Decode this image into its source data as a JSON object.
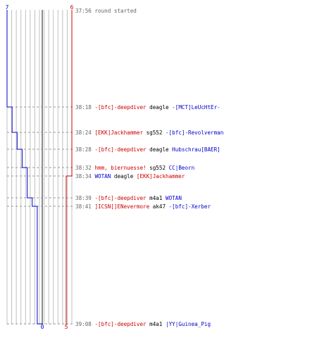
{
  "chart_data": {
    "type": "line",
    "description_free": true,
    "teams": {
      "blue": {
        "color": "#0000cc",
        "start": 7,
        "end": 0
      },
      "red": {
        "color": "#cc0000",
        "start": 6,
        "end": 5
      }
    },
    "start_labels": {
      "blue": "7",
      "red": "6"
    },
    "end_labels": {
      "blue": "0",
      "red": "5"
    },
    "x_range": [
      0,
      7
    ],
    "events": [
      {
        "time": "37:56",
        "parts": [
          {
            "text": "round started",
            "color": "#666666"
          }
        ],
        "blue": 7,
        "red": 6
      },
      {
        "time": "38:18",
        "parts": [
          {
            "text": "-[bfc]-deepdiver",
            "color": "#cc0000"
          },
          {
            "text": " deagle ",
            "color": "#000000"
          },
          {
            "text": "-[MCT]LeUcHtEr-",
            "color": "#0000cc"
          }
        ],
        "blue": 6,
        "red": 6
      },
      {
        "time": "38:24",
        "parts": [
          {
            "text": "[EKK]Jackhammer",
            "color": "#cc0000"
          },
          {
            "text": " sg552 ",
            "color": "#000000"
          },
          {
            "text": "-[bfc]-Revolverman",
            "color": "#0000cc"
          }
        ],
        "blue": 5,
        "red": 6
      },
      {
        "time": "38:28",
        "parts": [
          {
            "text": "-[bfc]-deepdiver",
            "color": "#cc0000"
          },
          {
            "text": " deagle ",
            "color": "#000000"
          },
          {
            "text": "Hubschrau[BAER]",
            "color": "#0000cc"
          }
        ],
        "blue": 4,
        "red": 6
      },
      {
        "time": "38:32",
        "parts": [
          {
            "text": "hmm, biernuesse!",
            "color": "#cc0000"
          },
          {
            "text": " sg552 ",
            "color": "#000000"
          },
          {
            "text": "CC|Beorn",
            "color": "#0000cc"
          }
        ],
        "blue": 3,
        "red": 6
      },
      {
        "time": "38:34",
        "parts": [
          {
            "text": "WOTAN",
            "color": "#0000cc"
          },
          {
            "text": " deagle ",
            "color": "#000000"
          },
          {
            "text": "[EKK]Jackhammer",
            "color": "#cc0000"
          }
        ],
        "blue": 3,
        "red": 5
      },
      {
        "time": "38:39",
        "parts": [
          {
            "text": "-[bfc]-deepdiver",
            "color": "#cc0000"
          },
          {
            "text": " m4a1 ",
            "color": "#000000"
          },
          {
            "text": "WOTAN",
            "color": "#0000cc"
          }
        ],
        "blue": 2,
        "red": 5
      },
      {
        "time": "38:41",
        "parts": [
          {
            "text": "]ICSN[]ENevermore",
            "color": "#cc0000"
          },
          {
            "text": " ak47 ",
            "color": "#000000"
          },
          {
            "text": "-[bfc]-Xerber",
            "color": "#0000cc"
          }
        ],
        "blue": 1,
        "red": 5
      },
      {
        "time": "39:08",
        "parts": [
          {
            "text": "-[bfc]-deepdiver",
            "color": "#cc0000"
          },
          {
            "text": " m4a1 ",
            "color": "#000000"
          },
          {
            "text": "|YY|Guinea_Pig",
            "color": "#0000cc"
          }
        ],
        "blue": 0,
        "red": 5
      }
    ]
  }
}
